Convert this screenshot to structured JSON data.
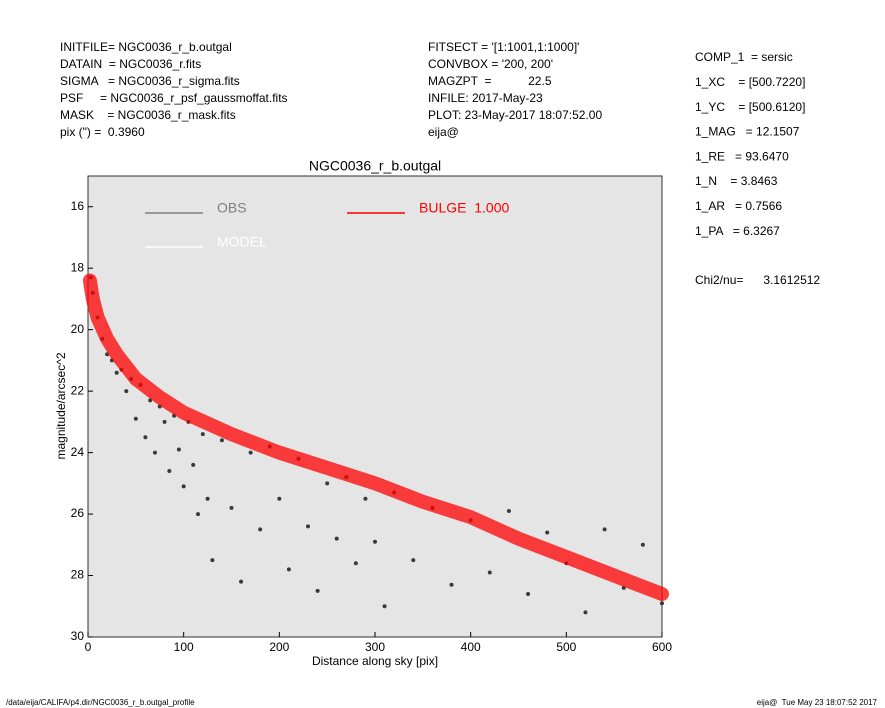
{
  "header": {
    "left": [
      "INITFILE= NGC0036_r_b.outgal",
      "DATAIN  = NGC0036_r.fits",
      "SIGMA   = NGC0036_r_sigma.fits",
      "PSF     = NGC0036_r_psf_gaussmoffat.fits",
      "MASK    = NGC0036_r_mask.fits",
      "pix (\") =  0.3960"
    ],
    "middle": [
      "FITSECT = '[1:1001,1:1000]'",
      "CONVBOX = '200, 200'",
      "MAGZPT  =           22.5",
      "INFILE: 2017-May-23",
      "PLOT: 23-May-2017 18:07:52.00",
      "eija@"
    ],
    "right": [
      "COMP_1  = sersic",
      "1_XC    = [500.7220]",
      "1_YC    = [500.6120]",
      "1_MAG   = 12.1507",
      "1_RE   = 93.6470",
      "1_N    = 3.8463",
      "1_AR   = 0.7566",
      "1_PA   = 6.3267"
    ],
    "chi": "Chi2/nu=      3.1612512"
  },
  "footer": {
    "left": "/data/eija/CALIFA/p4.dir/NGC0036_r_b.outgal_profile",
    "right": "eija@  Tue May 23 18:07:52 2017"
  },
  "chart_data": {
    "type": "scatter",
    "title": "NGC0036_r_b.outgal",
    "x_label": "Distance along sky [pix]",
    "y_label": "magnitude/arcsec^2",
    "xlim": [
      0,
      600
    ],
    "xticks": [
      0,
      100,
      200,
      300,
      400,
      500,
      600
    ],
    "ylim": [
      30,
      15
    ],
    "yticks": [
      16,
      18,
      20,
      22,
      24,
      26,
      28,
      30
    ],
    "y_inverted": true,
    "series": [
      {
        "name": "OBS",
        "color": "#3a3a3a",
        "legend_color": "#808080",
        "x": [
          3,
          5,
          10,
          15,
          20,
          25,
          30,
          35,
          40,
          45,
          50,
          55,
          60,
          65,
          70,
          75,
          80,
          85,
          90,
          95,
          100,
          105,
          110,
          115,
          120,
          125,
          130,
          140,
          150,
          160,
          170,
          180,
          190,
          200,
          210,
          220,
          230,
          240,
          250,
          260,
          270,
          280,
          290,
          300,
          310,
          320,
          340,
          360,
          380,
          400,
          420,
          440,
          460,
          480,
          500,
          520,
          540,
          560,
          580,
          600
        ],
        "values": [
          18.3,
          18.8,
          19.6,
          20.3,
          20.8,
          21.0,
          21.4,
          21.3,
          22.0,
          21.6,
          22.9,
          21.8,
          23.5,
          22.3,
          24.0,
          22.5,
          23.0,
          24.6,
          22.8,
          23.9,
          25.1,
          23.0,
          24.4,
          26.0,
          23.4,
          25.5,
          27.5,
          23.6,
          25.8,
          28.2,
          24.0,
          26.5,
          23.8,
          25.5,
          27.8,
          24.2,
          26.4,
          28.5,
          25.0,
          26.8,
          24.8,
          27.6,
          25.5,
          26.9,
          29.0,
          25.3,
          27.5,
          25.8,
          28.3,
          26.2,
          27.9,
          25.9,
          28.6,
          26.6,
          27.6,
          29.2,
          26.5,
          28.4,
          27.0,
          28.9
        ]
      },
      {
        "name": "BULGE  1.000",
        "color": "#ff0000",
        "x": [
          2,
          5,
          10,
          20,
          30,
          40,
          50,
          75,
          100,
          150,
          200,
          250,
          300,
          350,
          400,
          450,
          500,
          550,
          600
        ],
        "values": [
          18.4,
          19.0,
          19.6,
          20.3,
          20.8,
          21.2,
          21.6,
          22.2,
          22.7,
          23.4,
          24.0,
          24.5,
          25.0,
          25.6,
          26.1,
          26.8,
          27.4,
          28.0,
          28.6
        ]
      }
    ],
    "legend_extra": [
      {
        "name": "MODEL",
        "color": "#ffffff"
      }
    ]
  }
}
